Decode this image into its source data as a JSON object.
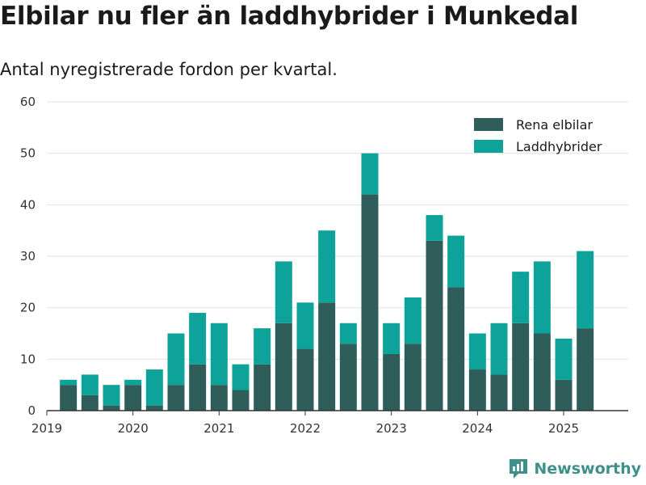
{
  "title": "Elbilar nu fler än laddhybrider i Munkedal",
  "subtitle": "Antal nyregistrerade fordon per kvartal.",
  "brand": "Newsworthy",
  "colors": {
    "rena_elbilar": "#2f5d59",
    "laddhybrider": "#0ea39a",
    "grid": "#e3e3e3",
    "axis": "#333333",
    "brand": "#3f8f8a"
  },
  "chart_data": {
    "type": "bar",
    "stacked": true,
    "categories": [
      "2019 Q2",
      "2019 Q3",
      "2019 Q4",
      "2020 Q1",
      "2020 Q2",
      "2020 Q3",
      "2020 Q4",
      "2021 Q1",
      "2021 Q2",
      "2021 Q3",
      "2021 Q4",
      "2022 Q1",
      "2022 Q2",
      "2022 Q3",
      "2022 Q4",
      "2023 Q1",
      "2023 Q2",
      "2023 Q3",
      "2023 Q4",
      "2024 Q1",
      "2024 Q2",
      "2024 Q3",
      "2024 Q4",
      "2025 Q1",
      "2025 Q2"
    ],
    "series": [
      {
        "name": "Rena elbilar",
        "values": [
          5,
          3,
          1,
          5,
          1,
          5,
          9,
          5,
          4,
          9,
          17,
          12,
          21,
          13,
          42,
          11,
          13,
          33,
          24,
          8,
          7,
          17,
          15,
          6,
          16
        ]
      },
      {
        "name": "Laddhybrider",
        "values": [
          1,
          4,
          4,
          1,
          7,
          10,
          10,
          12,
          5,
          7,
          12,
          9,
          14,
          4,
          8,
          6,
          9,
          5,
          10,
          7,
          10,
          10,
          14,
          8,
          15
        ]
      }
    ],
    "x_tick_labels": [
      "2019",
      "2020",
      "2021",
      "2022",
      "2023",
      "2024",
      "2025"
    ],
    "x_range": [
      2019,
      2025.75
    ],
    "ylim": [
      0,
      60
    ],
    "y_ticks": [
      "0",
      "10",
      "20",
      "30",
      "40",
      "50",
      "60"
    ],
    "grid": true,
    "legend_position": "top-right"
  }
}
